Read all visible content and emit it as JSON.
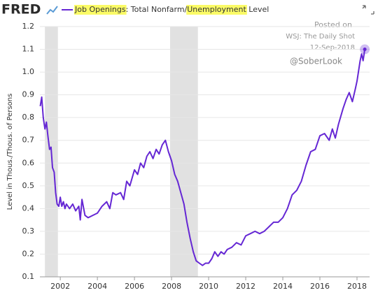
{
  "brand": "FRED",
  "chart_data": {
    "type": "line",
    "y_axis_label": "Level in Thous./Thous. of Persons",
    "annotations": [
      "Posted on",
      "WSJ: The Daily Shot",
      "12-Sep-2018",
      "@SoberLook"
    ],
    "x": [
      2000.92,
      2001.0,
      2001.08,
      2001.17,
      2001.25,
      2001.33,
      2001.42,
      2001.5,
      2001.58,
      2001.67,
      2001.75,
      2001.83,
      2001.92,
      2002.0,
      2002.08,
      2002.17,
      2002.25,
      2002.33,
      2002.5,
      2002.67,
      2002.83,
      2003.0,
      2003.08,
      2003.17,
      2003.33,
      2003.5,
      2003.75,
      2004.0,
      2004.25,
      2004.5,
      2004.67,
      2004.83,
      2005.0,
      2005.25,
      2005.42,
      2005.58,
      2005.75,
      2006.0,
      2006.17,
      2006.33,
      2006.5,
      2006.67,
      2006.83,
      2007.0,
      2007.17,
      2007.33,
      2007.5,
      2007.67,
      2007.83,
      2008.0,
      2008.17,
      2008.33,
      2008.5,
      2008.67,
      2008.83,
      2009.0,
      2009.17,
      2009.33,
      2009.5,
      2009.67,
      2009.83,
      2010.0,
      2010.17,
      2010.33,
      2010.5,
      2010.67,
      2010.83,
      2011.0,
      2011.25,
      2011.5,
      2011.75,
      2012.0,
      2012.25,
      2012.5,
      2012.75,
      2013.0,
      2013.25,
      2013.5,
      2013.75,
      2014.0,
      2014.25,
      2014.5,
      2014.75,
      2015.0,
      2015.25,
      2015.5,
      2015.75,
      2016.0,
      2016.25,
      2016.5,
      2016.67,
      2016.83,
      2017.0,
      2017.25,
      2017.42,
      2017.58,
      2017.75,
      2017.92,
      2018.0,
      2018.17,
      2018.25,
      2018.33,
      2018.42
    ],
    "series": [
      {
        "name": "Job Openings: Total Nonfarm/Unemployment Level",
        "color": "#6527d4",
        "values": [
          0.85,
          0.89,
          0.8,
          0.75,
          0.78,
          0.72,
          0.66,
          0.67,
          0.58,
          0.56,
          0.47,
          0.42,
          0.41,
          0.45,
          0.41,
          0.43,
          0.4,
          0.42,
          0.4,
          0.42,
          0.39,
          0.41,
          0.35,
          0.44,
          0.37,
          0.36,
          0.37,
          0.38,
          0.41,
          0.43,
          0.4,
          0.47,
          0.46,
          0.47,
          0.44,
          0.52,
          0.5,
          0.57,
          0.55,
          0.6,
          0.58,
          0.63,
          0.65,
          0.62,
          0.66,
          0.64,
          0.68,
          0.7,
          0.65,
          0.61,
          0.55,
          0.52,
          0.47,
          0.42,
          0.34,
          0.27,
          0.21,
          0.17,
          0.16,
          0.15,
          0.16,
          0.16,
          0.18,
          0.21,
          0.19,
          0.21,
          0.2,
          0.22,
          0.23,
          0.25,
          0.24,
          0.28,
          0.29,
          0.3,
          0.29,
          0.3,
          0.32,
          0.34,
          0.34,
          0.36,
          0.4,
          0.46,
          0.48,
          0.52,
          0.59,
          0.65,
          0.66,
          0.72,
          0.73,
          0.7,
          0.75,
          0.71,
          0.77,
          0.84,
          0.88,
          0.91,
          0.87,
          0.93,
          0.96,
          1.05,
          1.08,
          1.05,
          1.1
        ]
      }
    ],
    "recessions": [
      [
        2001.17,
        2001.87
      ],
      [
        2007.92,
        2009.42
      ]
    ],
    "xlim": [
      2000.9,
      2018.68
    ],
    "xticks": [
      2002,
      2004,
      2006,
      2008,
      2010,
      2012,
      2014,
      2016,
      2018
    ],
    "ylim": [
      0.1,
      1.2
    ],
    "yticks": [
      0.1,
      0.2,
      0.3,
      0.4,
      0.5,
      0.6,
      0.7,
      0.8,
      0.9,
      {
        "value": 1,
        "label": "1.0"
      },
      1.1,
      1.2
    ],
    "grid": true
  }
}
